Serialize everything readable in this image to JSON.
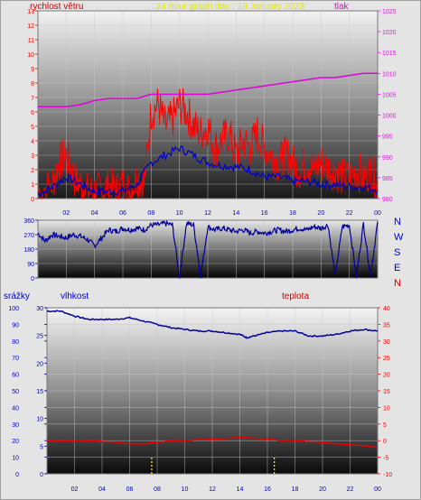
{
  "header": {
    "wind_label": "rychlost větru",
    "graph_title": "24 hour graph day : 19 January 2023",
    "pressure_label": "tlak"
  },
  "lower_header": {
    "rain_label": "srážky",
    "humidity_label": "vlhkost",
    "temp_label": "teplota"
  },
  "compass_labels": [
    "N",
    "W",
    "S",
    "E",
    "N"
  ],
  "colors": {
    "wind": "#ff0000",
    "wind_avg": "#0000cc",
    "pressure": "#e000e0",
    "direction": "#000099",
    "humidity": "#000099",
    "temperature": "#ee0000",
    "rain": "#ffff00",
    "axis_red": "#ff0000",
    "axis_magenta": "#ff00ff",
    "axis_blue": "#0000cc"
  },
  "chart_data": [
    {
      "type": "line",
      "title": "24 hour graph day : 19 January 2023",
      "x_ticks": [
        "02",
        "04",
        "06",
        "08",
        "10",
        "12",
        "14",
        "16",
        "18",
        "20",
        "22",
        "00"
      ],
      "x_range_hours": [
        0,
        24
      ],
      "y_left_label": "rychlost větru",
      "y_left_range": [
        0,
        13
      ],
      "y_left_ticks": [
        "0",
        "1",
        "2",
        "3",
        "4",
        "5",
        "6",
        "7",
        "8",
        "9",
        "10",
        "11",
        "12",
        "13"
      ],
      "y_right_label": "tlak",
      "y_right_range": [
        980,
        1025
      ],
      "y_right_ticks": [
        "980",
        "985",
        "990",
        "995",
        "1000",
        "1005",
        "1010",
        "1015",
        "1020",
        "1025"
      ],
      "series": [
        {
          "name": "rychlost větru",
          "axis": "left",
          "hours": [
            0,
            1,
            1.5,
            2,
            2.5,
            3,
            3.5,
            4,
            4.5,
            5,
            5.5,
            6,
            6.5,
            7,
            7.5,
            8,
            8.5,
            9,
            9.5,
            10,
            10.5,
            11,
            11.5,
            12,
            12.5,
            13,
            13.5,
            14,
            14.5,
            15,
            15.5,
            16,
            16.5,
            17,
            17.5,
            18,
            18.5,
            19,
            19.5,
            20,
            20.5,
            21,
            21.5,
            22,
            22.5,
            23,
            23.5,
            24
          ],
          "values": [
            0.5,
            1,
            2.5,
            3,
            1.5,
            1,
            0.5,
            0.5,
            0.5,
            1,
            0.5,
            1,
            0.5,
            1.5,
            1,
            6,
            6.5,
            5,
            5.5,
            6.5,
            6,
            5,
            4.5,
            5,
            3.5,
            4,
            4.5,
            3,
            4,
            3.5,
            4.5,
            3.5,
            3,
            2.5,
            3,
            2.5,
            2,
            2.5,
            2,
            2.5,
            2,
            2,
            1.5,
            1.5,
            2,
            1.5,
            2,
            1
          ]
        },
        {
          "name": "wind average",
          "axis": "left",
          "hours": [
            0,
            1,
            2,
            3,
            4,
            5,
            6,
            7,
            8,
            9,
            10,
            11,
            12,
            13,
            14,
            15,
            16,
            17,
            18,
            19,
            20,
            21,
            22,
            23,
            24
          ],
          "values": [
            0.3,
            0.8,
            1.5,
            1,
            0.5,
            0.5,
            0.5,
            1,
            2.5,
            3,
            3.5,
            3,
            2.5,
            2.3,
            2.2,
            2,
            1.5,
            1.5,
            1.2,
            1.2,
            1,
            1,
            0.8,
            0.8,
            0.6
          ]
        },
        {
          "name": "tlak",
          "axis": "right",
          "hours": [
            0,
            1,
            2,
            3,
            4,
            5,
            6,
            7,
            8,
            9,
            10,
            11,
            12,
            13,
            14,
            15,
            16,
            17,
            18,
            19,
            20,
            21,
            22,
            23,
            24
          ],
          "values": [
            1002,
            1002,
            1002,
            1002.5,
            1003.5,
            1004,
            1004,
            1004,
            1005,
            1005,
            1005,
            1005,
            1005,
            1005.5,
            1006,
            1006.5,
            1007,
            1007.5,
            1008,
            1008.5,
            1009,
            1009,
            1009.5,
            1010,
            1010
          ]
        }
      ]
    },
    {
      "type": "line",
      "y_range": [
        0,
        360
      ],
      "y_ticks": [
        "0",
        "90",
        "180",
        "270",
        "360"
      ],
      "x_range_hours": [
        0,
        24
      ],
      "series": [
        {
          "name": "wind direction",
          "hours": [
            0,
            0.5,
            1,
            1.5,
            2,
            2.5,
            3,
            3.5,
            4,
            4.5,
            5,
            5.5,
            6,
            6.5,
            7,
            7.5,
            8,
            8.5,
            9,
            9.5,
            10,
            10.5,
            11,
            11.5,
            12,
            12.5,
            13,
            13.5,
            14,
            14.5,
            15,
            15.5,
            16,
            16.5,
            17,
            17.5,
            18,
            18.5,
            19,
            19.5,
            20,
            20.5,
            21,
            21.5,
            22,
            22.5,
            23,
            23.5,
            24
          ],
          "values": [
            280,
            230,
            270,
            260,
            250,
            270,
            260,
            240,
            200,
            250,
            300,
            290,
            310,
            300,
            310,
            300,
            330,
            330,
            340,
            330,
            10,
            340,
            330,
            10,
            320,
            300,
            310,
            300,
            290,
            300,
            280,
            290,
            280,
            290,
            300,
            290,
            300,
            310,
            300,
            320,
            310,
            330,
            10,
            320,
            330,
            10,
            340,
            10,
            350
          ]
        }
      ]
    },
    {
      "type": "line",
      "x_ticks": [
        "02",
        "04",
        "06",
        "08",
        "10",
        "12",
        "14",
        "16",
        "18",
        "20",
        "22",
        "00"
      ],
      "x_range_hours": [
        0,
        24
      ],
      "y_left_outer_label": "srážky",
      "y_left_outer_ticks": [
        "0",
        "10",
        "20",
        "30",
        "40",
        "50",
        "60",
        "70",
        "80",
        "90",
        "100"
      ],
      "y_left_label": "vlhkost",
      "y_left_range": [
        0,
        30
      ],
      "y_left_ticks": [
        "0",
        "5",
        "10",
        "15",
        "20",
        "25",
        "30"
      ],
      "y_right_label": "teplota",
      "y_right_range": [
        -10,
        40
      ],
      "y_right_ticks": [
        "-10",
        "-5",
        "0",
        "5",
        "10",
        "15",
        "20",
        "25",
        "30",
        "35",
        "40"
      ],
      "series": [
        {
          "name": "vlhkost",
          "axis": "left",
          "hours": [
            0,
            1,
            2,
            3,
            4,
            5,
            6,
            7,
            8,
            9,
            10,
            11,
            12,
            13,
            14,
            14.5,
            15,
            16,
            17,
            18,
            19,
            20,
            21,
            22,
            23,
            24
          ],
          "values": [
            98,
            98,
            95,
            93,
            93,
            93,
            94,
            92,
            90,
            88,
            87,
            86,
            86,
            85,
            84,
            82,
            83,
            85,
            86,
            86,
            83,
            83,
            84,
            86,
            87,
            86
          ]
        },
        {
          "name": "teplota",
          "axis": "right",
          "hours": [
            0,
            1,
            2,
            3,
            4,
            5,
            6,
            7,
            8,
            9,
            10,
            11,
            12,
            13,
            14,
            15,
            16,
            17,
            18,
            19,
            20,
            21,
            22,
            23,
            24
          ],
          "values": [
            0,
            0,
            0,
            0,
            -0.2,
            -0.5,
            -1,
            -1,
            -0.5,
            0,
            0,
            0.3,
            0.5,
            0.7,
            1,
            0.8,
            0.5,
            0,
            0,
            -0.3,
            -0.5,
            -1,
            -1.2,
            -1.5,
            -2
          ]
        },
        {
          "name": "srážky",
          "axis": "outer",
          "hours": [
            7.6,
            16.5
          ],
          "values": [
            10,
            10
          ]
        }
      ]
    }
  ]
}
